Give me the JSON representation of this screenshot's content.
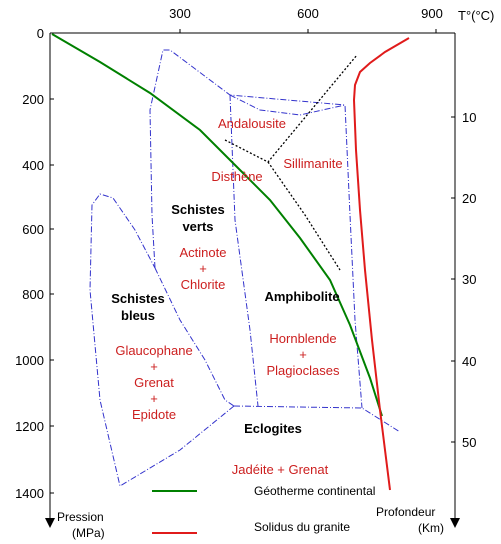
{
  "axes": {
    "temperature": {
      "unit_label": "T°(°C)",
      "ticks": [
        "300",
        "600",
        "900"
      ]
    },
    "pressure": {
      "ticks": [
        "0",
        "200",
        "400",
        "600",
        "800",
        "1000",
        "1200",
        "1400"
      ],
      "label_line1": "Pression",
      "label_line2": "(MPa)"
    },
    "depth": {
      "ticks": [
        "10",
        "20",
        "30",
        "40",
        "50"
      ],
      "label_line1": "Profondeur",
      "label_line2": "(Km)"
    }
  },
  "facies": {
    "schistes_verts": {
      "line1": "Schistes",
      "line2": "verts"
    },
    "schistes_bleus": {
      "line1": "Schistes",
      "line2": "bleus"
    },
    "amphibolite": "Amphibolite",
    "eclogites": "Eclogites"
  },
  "minerals": {
    "andalousite": "Andalousite",
    "disthene": "Disthène",
    "sillimanite": "Sillimanite",
    "actinote": "Actinote",
    "chlorite": "Chlorite",
    "glaucophane": "Glaucophane",
    "grenat": "Grenat",
    "epidote": "Epidote",
    "hornblende": "Hornblende",
    "plagioclases": "Plagioclases",
    "jadeite_grenat": "Jadéite + Grenat",
    "plus": "+"
  },
  "legend": {
    "geotherm": {
      "label": "Géotherme continental",
      "color": "#008000"
    },
    "solidus": {
      "label": "Solidus du granite",
      "color": "#e01b1b"
    }
  },
  "colors": {
    "facies_boundary": "#3333cc",
    "mineral_labels": "#cc1f1f",
    "triple_point_lines": "#000000"
  }
}
